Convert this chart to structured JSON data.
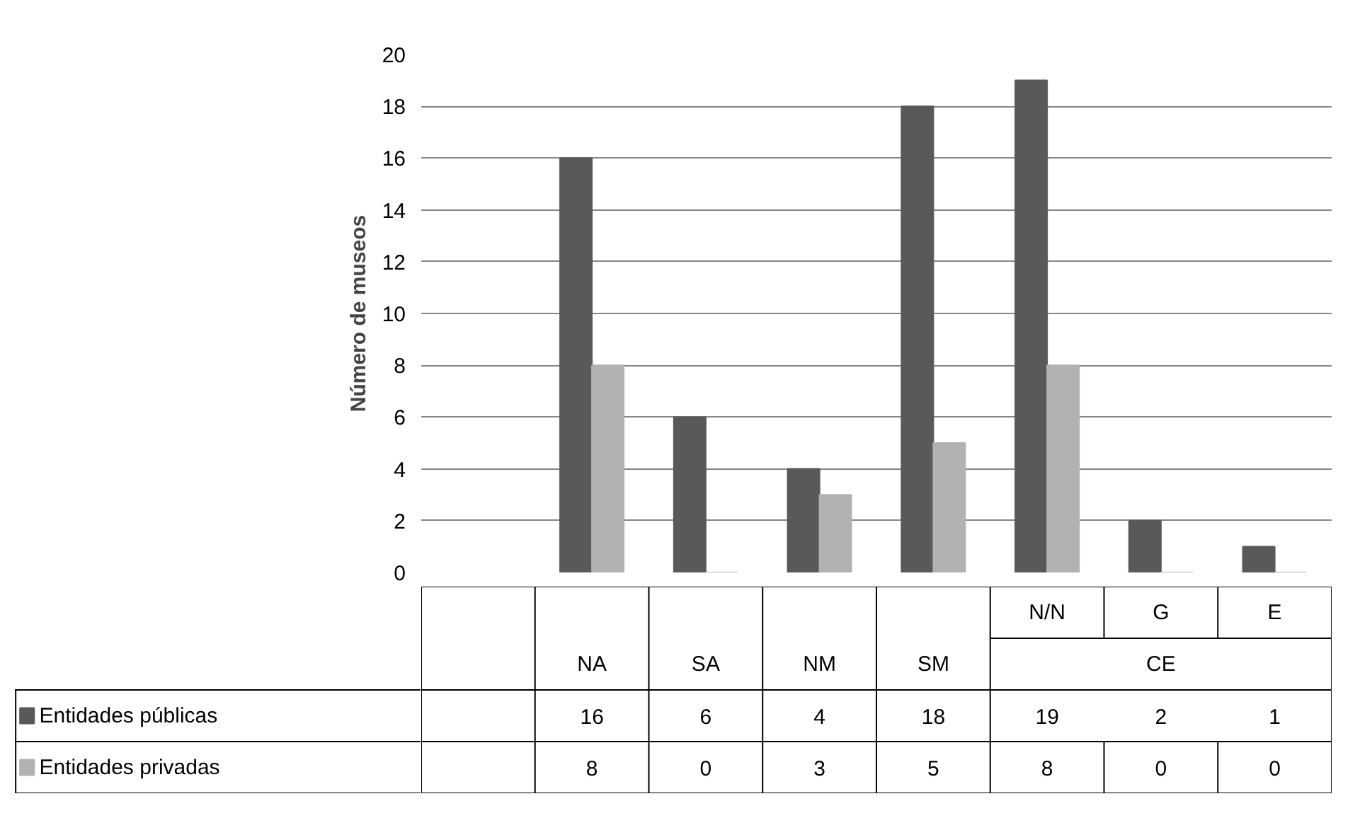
{
  "chart_data": {
    "type": "bar",
    "ylabel": "Número de museos",
    "categories": [
      null,
      "NA",
      "SA",
      "NM",
      "SM",
      "N/N",
      "G",
      "E"
    ],
    "series": [
      {
        "name": "Entidades públicas",
        "color": "#595959",
        "values": [
          null,
          16,
          6,
          4,
          18,
          19,
          2,
          1
        ]
      },
      {
        "name": "Entidades privadas",
        "color": "#b2b2b2",
        "values": [
          null,
          8,
          0,
          3,
          5,
          8,
          0,
          0
        ]
      }
    ],
    "ylim": [
      0,
      20
    ],
    "yticks": [
      0,
      2,
      4,
      6,
      8,
      10,
      12,
      14,
      16,
      18,
      20
    ],
    "grid": "y",
    "data_labels": true,
    "legend": "bottom",
    "annotations": [
      "CE"
    ]
  }
}
